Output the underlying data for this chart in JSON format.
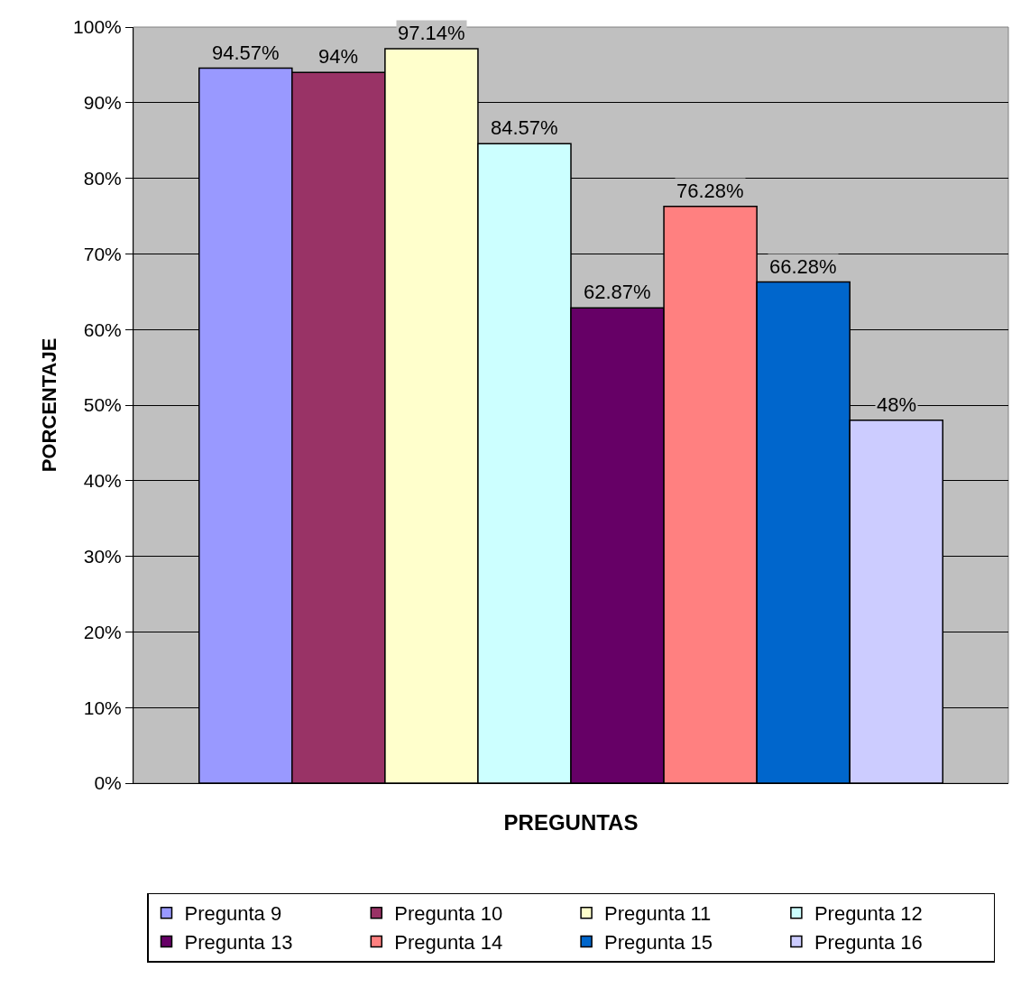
{
  "chart_data": {
    "type": "bar",
    "xlabel": "PREGUNTAS",
    "ylabel": "PORCENTAJE",
    "categories": [
      null
    ],
    "series": [
      {
        "name": "Pregunta 9",
        "color": "#9999ff",
        "values": [
          94.57
        ],
        "value_labels": [
          "94.57%"
        ]
      },
      {
        "name": "Pregunta 10",
        "color": "#993366",
        "values": [
          94
        ],
        "value_labels": [
          "94%"
        ]
      },
      {
        "name": "Pregunta 11",
        "color": "#ffffcc",
        "values": [
          97.14
        ],
        "value_labels": [
          "97.14%"
        ]
      },
      {
        "name": "Pregunta 12",
        "color": "#ccffff",
        "values": [
          84.57
        ],
        "value_labels": [
          "84.57%"
        ]
      },
      {
        "name": "Pregunta 13",
        "color": "#660066",
        "values": [
          62.87
        ],
        "value_labels": [
          "62.87%"
        ]
      },
      {
        "name": "Pregunta 14",
        "color": "#ff8080",
        "values": [
          76.28
        ],
        "value_labels": [
          "76.28%"
        ]
      },
      {
        "name": "Pregunta 15",
        "color": "#0066cc",
        "values": [
          66.28
        ],
        "value_labels": [
          "66.28%"
        ]
      },
      {
        "name": "Pregunta 16",
        "color": "#ccccff",
        "values": [
          48
        ],
        "value_labels": [
          "48%"
        ]
      }
    ],
    "ylim": [
      0,
      100
    ],
    "yticks": [
      {
        "value": 0,
        "label": "0%"
      },
      {
        "value": 10,
        "label": "10%"
      },
      {
        "value": 20,
        "label": "20%"
      },
      {
        "value": 30,
        "label": "30%"
      },
      {
        "value": 40,
        "label": "40%"
      },
      {
        "value": 50,
        "label": "50%"
      },
      {
        "value": 60,
        "label": "60%"
      },
      {
        "value": 70,
        "label": "70%"
      },
      {
        "value": 80,
        "label": "80%"
      },
      {
        "value": 90,
        "label": "90%"
      },
      {
        "value": 100,
        "label": "100%"
      }
    ],
    "grid": "y",
    "legend": "bottom"
  }
}
